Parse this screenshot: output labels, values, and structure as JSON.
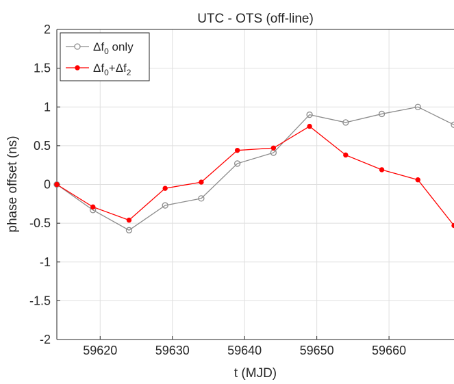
{
  "chart_data": {
    "type": "line",
    "title": "UTC - OTS  (off-line)",
    "xlabel": "t (MJD)",
    "ylabel": "phase offset (ns)",
    "xlim": [
      59614,
      59669
    ],
    "ylim": [
      -2,
      2
    ],
    "xticks": [
      59620,
      59630,
      59640,
      59650,
      59660
    ],
    "yticks": [
      -2,
      -1.5,
      -1,
      -0.5,
      0,
      0.5,
      1,
      1.5,
      2
    ],
    "grid": true,
    "legend_position": "top-left",
    "series": [
      {
        "name": "Δf0 only",
        "color": "#8c8c8c",
        "marker": "open-circle",
        "x": [
          59614,
          59619,
          59624,
          59629,
          59634,
          59639,
          59644,
          59649,
          59654,
          59659,
          59664,
          59669
        ],
        "y": [
          0.0,
          -0.33,
          -0.59,
          -0.27,
          -0.18,
          0.27,
          0.41,
          0.9,
          0.8,
          0.91,
          1.0,
          0.77
        ]
      },
      {
        "name": "Δf0+Δf2",
        "color": "#ff0000",
        "marker": "filled-dot",
        "x": [
          59614,
          59619,
          59624,
          59629,
          59634,
          59639,
          59644,
          59649,
          59654,
          59659,
          59664,
          59669
        ],
        "y": [
          0.0,
          -0.29,
          -0.46,
          -0.05,
          0.03,
          0.44,
          0.47,
          0.75,
          0.38,
          0.19,
          0.06,
          -0.53
        ]
      }
    ]
  }
}
